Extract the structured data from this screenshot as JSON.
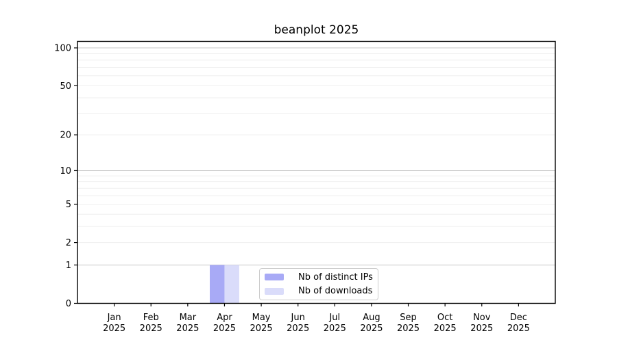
{
  "chart_data": {
    "type": "bar",
    "title": "beanplot 2025",
    "categories": [
      "Jan",
      "Feb",
      "Mar",
      "Apr",
      "May",
      "Jun",
      "Jul",
      "Aug",
      "Sep",
      "Oct",
      "Nov",
      "Dec"
    ],
    "x_year_label": "2025",
    "series": [
      {
        "name": "Nb of distinct IPs",
        "color": "#a8aaf6",
        "values": [
          0,
          0,
          0,
          1,
          0,
          0,
          0,
          0,
          0,
          0,
          0,
          0
        ]
      },
      {
        "name": "Nb of downloads",
        "color": "#dadcfa",
        "values": [
          0,
          0,
          0,
          1,
          0,
          0,
          0,
          0,
          0,
          0,
          0,
          0
        ]
      }
    ],
    "y_axis": {
      "scale": "log10(value+1)",
      "ylim": [
        0,
        101
      ],
      "major_tick_labels": [
        100,
        50,
        20,
        10,
        5,
        2,
        1,
        0
      ],
      "decade_gridlines": [
        100,
        10,
        1
      ],
      "light_gridlines": [
        90,
        80,
        70,
        60,
        50,
        40,
        30,
        20,
        9,
        8,
        7,
        6,
        5,
        4,
        3,
        2
      ]
    },
    "legend": {
      "position": "lower center",
      "entries": [
        "Nb of distinct IPs",
        "Nb of downloads"
      ]
    },
    "grid": true,
    "bar_width_fraction": 0.4
  },
  "colors": {
    "background": "#ffffff",
    "axis": "#000000",
    "text": "#000000",
    "grid_decade": "#c6c6c6",
    "grid_light": "#efefef",
    "legend_border": "#cccccc",
    "bar_distinct_ips": "#a8aaf6",
    "bar_downloads": "#dadcfa"
  }
}
